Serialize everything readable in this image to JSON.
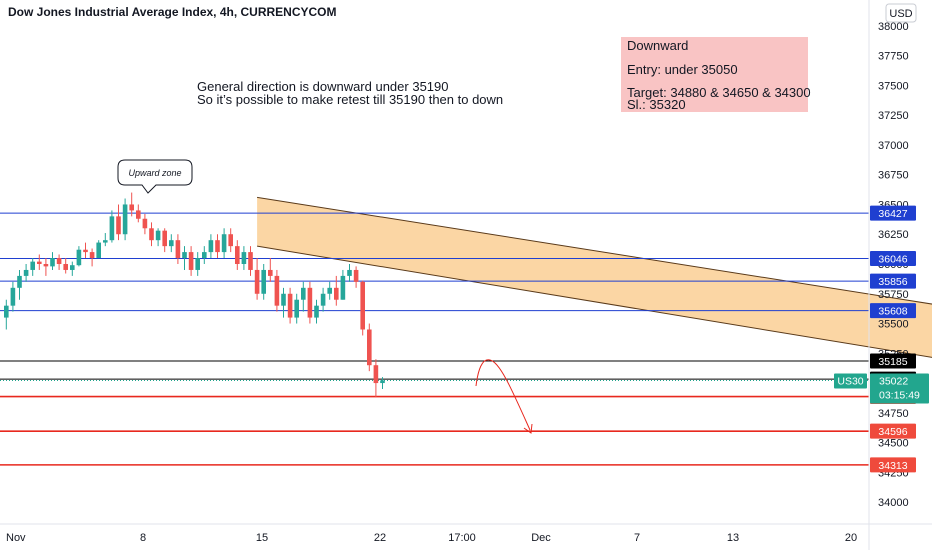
{
  "chart_data": {
    "type": "candlestick",
    "title": "Dow Jones Industrial Average Index, 4h, CURRENCYCOM",
    "currency": "USD",
    "ylim": [
      33850,
      38150
    ],
    "y_ticks": [
      "38000",
      "37750",
      "37500",
      "37250",
      "37000",
      "36750",
      "36500",
      "36250",
      "36000",
      "35750",
      "35500",
      "35250",
      "35000",
      "34750",
      "34500",
      "34250",
      "34000"
    ],
    "x_ticks": [
      "Nov",
      "8",
      "15",
      "22",
      "17:00",
      "Dec",
      "7",
      "13",
      "20"
    ],
    "price_levels": [
      {
        "label": "36427",
        "value": 36427,
        "color": "#1f3fd0",
        "kind": "blue"
      },
      {
        "label": "36046",
        "value": 36046,
        "color": "#1f3fd0",
        "kind": "blue"
      },
      {
        "label": "35856",
        "value": 35856,
        "color": "#1f3fd0",
        "kind": "blue"
      },
      {
        "label": "35608",
        "value": 35608,
        "color": "#1f3fd0",
        "kind": "blue"
      },
      {
        "label": "35185",
        "value": 35185,
        "color": "#000000",
        "kind": "black"
      },
      {
        "label": "35033",
        "value": 35033,
        "color": "#000000",
        "kind": "black"
      },
      {
        "label": "34887",
        "value": 34887,
        "color": "#e8281e",
        "kind": "red"
      },
      {
        "label": "34596",
        "value": 34596,
        "color": "#e8281e",
        "kind": "red"
      },
      {
        "label": "34313",
        "value": 34313,
        "color": "#e8281e",
        "kind": "red"
      }
    ],
    "current_price": {
      "symbol": "US30",
      "price": "35022",
      "countdown": "03:15:49",
      "value": 35022,
      "color": "#22a68e"
    },
    "ohlc": [
      [
        35550,
        35700,
        35450,
        35650
      ],
      [
        35650,
        35850,
        35600,
        35800
      ],
      [
        35800,
        35950,
        35700,
        35900
      ],
      [
        35900,
        36000,
        35850,
        35950
      ],
      [
        35950,
        36050,
        35900,
        36020
      ],
      [
        36020,
        36080,
        35950,
        36000
      ],
      [
        36000,
        36050,
        35900,
        35980
      ],
      [
        35980,
        36100,
        35950,
        36050
      ],
      [
        36050,
        36080,
        35950,
        36000
      ],
      [
        36000,
        36050,
        35920,
        35950
      ],
      [
        35950,
        36020,
        35900,
        35990
      ],
      [
        35990,
        36150,
        35980,
        36120
      ],
      [
        36120,
        36180,
        36050,
        36100
      ],
      [
        36100,
        36130,
        35980,
        36050
      ],
      [
        36050,
        36200,
        36050,
        36180
      ],
      [
        36180,
        36260,
        36150,
        36200
      ],
      [
        36200,
        36450,
        36180,
        36400
      ],
      [
        36400,
        36500,
        36200,
        36250
      ],
      [
        36250,
        36550,
        36200,
        36500
      ],
      [
        36500,
        36600,
        36400,
        36450
      ],
      [
        36450,
        36500,
        36350,
        36380
      ],
      [
        36380,
        36420,
        36250,
        36300
      ],
      [
        36300,
        36350,
        36150,
        36200
      ],
      [
        36200,
        36300,
        36150,
        36280
      ],
      [
        36280,
        36300,
        36100,
        36150
      ],
      [
        36150,
        36250,
        36100,
        36200
      ],
      [
        36200,
        36250,
        36000,
        36050
      ],
      [
        36050,
        36150,
        35950,
        36100
      ],
      [
        36100,
        36150,
        35900,
        35950
      ],
      [
        35950,
        36100,
        35900,
        36050
      ],
      [
        36050,
        36150,
        36000,
        36100
      ],
      [
        36100,
        36250,
        36050,
        36200
      ],
      [
        36200,
        36250,
        36050,
        36100
      ],
      [
        36100,
        36300,
        36050,
        36250
      ],
      [
        36250,
        36300,
        36100,
        36150
      ],
      [
        36150,
        36200,
        35950,
        36000
      ],
      [
        36000,
        36150,
        35950,
        36100
      ],
      [
        36100,
        36150,
        35900,
        35950
      ],
      [
        35950,
        36050,
        35700,
        35750
      ],
      [
        35750,
        36000,
        35700,
        35950
      ],
      [
        35950,
        36050,
        35850,
        35900
      ],
      [
        35900,
        35950,
        35600,
        35650
      ],
      [
        35650,
        35800,
        35550,
        35750
      ],
      [
        35750,
        35800,
        35500,
        35550
      ],
      [
        35550,
        35750,
        35500,
        35700
      ],
      [
        35700,
        35850,
        35600,
        35800
      ],
      [
        35800,
        35850,
        35500,
        35550
      ],
      [
        35550,
        35700,
        35500,
        35650
      ],
      [
        35650,
        35800,
        35600,
        35750
      ],
      [
        35750,
        35850,
        35700,
        35800
      ],
      [
        35800,
        35900,
        35650,
        35700
      ],
      [
        35700,
        35950,
        35700,
        35900
      ],
      [
        35900,
        36000,
        35850,
        35950
      ],
      [
        35950,
        35980,
        35800,
        35850
      ],
      [
        35850,
        35860,
        35400,
        35450
      ],
      [
        35450,
        35500,
        35100,
        35150
      ],
      [
        35150,
        35200,
        34880,
        35000
      ],
      [
        35000,
        35050,
        34950,
        35022
      ]
    ],
    "channel": {
      "upper": [
        [
          38.5,
          36560
        ],
        [
          148,
          35600
        ]
      ],
      "lower": [
        [
          38.5,
          36150
        ],
        [
          148,
          35150
        ]
      ],
      "fill": "#fbd29a"
    },
    "arrows": [
      {
        "x": 160,
        "from": 35608,
        "to": 35185
      },
      {
        "x": 170,
        "from": 35185,
        "to": 34596
      },
      {
        "x": 179,
        "from": 34596,
        "to": 34313
      }
    ]
  },
  "callout": {
    "text": "Upward zone"
  },
  "annotation": {
    "line1": "General direction is downward under 35190",
    "line2": "So it’s possible to make retest till 35190 then to down"
  },
  "trade_box": {
    "heading": "Downward",
    "entry": "Entry: under 35050",
    "target": "Target: 34880 & 34650 & 34300",
    "sl": "Sl.: 35320",
    "bg": "#f9c4c4"
  }
}
